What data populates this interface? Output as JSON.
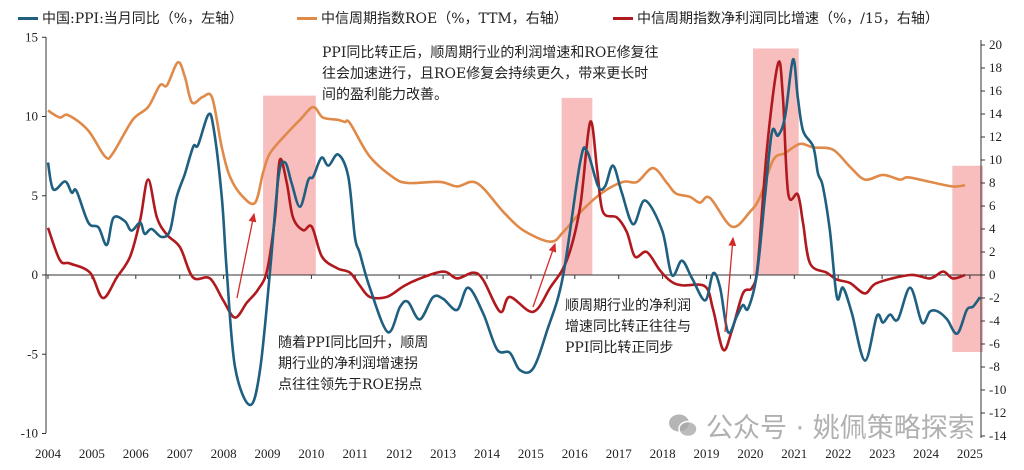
{
  "chart_data": {
    "type": "line",
    "legend_placement": "top",
    "grid": false,
    "x_ticks": [
      "2004",
      "2005",
      "2006",
      "2007",
      "2008",
      "2009",
      "2010",
      "2011",
      "2012",
      "2013",
      "2014",
      "2015",
      "2016",
      "2017",
      "2018",
      "2019",
      "2020",
      "2021",
      "2022",
      "2023",
      "2024",
      "2025"
    ],
    "y_left": {
      "range": [
        -10,
        15
      ],
      "ticks": [
        "-10",
        "-5",
        "0",
        "5",
        "10",
        "15"
      ]
    },
    "y_right": {
      "range": [
        -14,
        20
      ],
      "ticks": [
        "-14",
        "-12",
        "-10",
        "-8",
        "-6",
        "-4",
        "-2",
        "0",
        "2",
        "4",
        "6",
        "8",
        "10",
        "12",
        "14",
        "16",
        "18",
        "20"
      ]
    },
    "series": [
      {
        "name": "中国:PPI:当月同比（%，左轴）",
        "axis": "left",
        "color": "#1f5f80",
        "x": [
          2004.0,
          2004.12,
          2004.39,
          2004.54,
          2004.65,
          2004.92,
          2005.15,
          2005.34,
          2005.49,
          2005.75,
          2005.9,
          2006.1,
          2006.2,
          2006.36,
          2006.59,
          2006.78,
          2006.93,
          2007.12,
          2007.31,
          2007.42,
          2007.65,
          2007.77,
          2007.96,
          2008.07,
          2008.26,
          2008.6,
          2008.83,
          2009.06,
          2009.25,
          2009.4,
          2009.55,
          2009.74,
          2009.93,
          2010.04,
          2010.23,
          2010.39,
          2010.61,
          2010.84,
          2010.99,
          2011.1,
          2011.33,
          2011.74,
          2012.02,
          2012.2,
          2012.47,
          2012.77,
          2013.0,
          2013.32,
          2013.57,
          2013.91,
          2014.23,
          2014.52,
          2014.75,
          2015.05,
          2015.37,
          2015.73,
          2016.12,
          2016.28,
          2016.53,
          2016.69,
          2016.87,
          2017.07,
          2017.33,
          2017.6,
          2017.99,
          2018.21,
          2018.44,
          2018.67,
          2018.97,
          2019.15,
          2019.31,
          2019.49,
          2019.69,
          2019.83,
          2019.95,
          2020.15,
          2020.33,
          2020.49,
          2020.63,
          2020.79,
          2020.97,
          2021.08,
          2021.2,
          2021.43,
          2021.54,
          2021.65,
          2021.81,
          2021.97,
          2022.11,
          2022.31,
          2022.61,
          2022.88,
          2023.02,
          2023.18,
          2023.36,
          2023.64,
          2023.91,
          2024.09,
          2024.27,
          2024.48,
          2024.71,
          2024.93,
          2025.07,
          2025.23
        ],
        "values": [
          7.1,
          5.4,
          5.9,
          5.2,
          5.3,
          3.3,
          3.0,
          1.9,
          3.6,
          3.4,
          2.8,
          3.3,
          2.6,
          2.9,
          2.4,
          2.8,
          4.9,
          6.4,
          8.1,
          8.2,
          10.1,
          9.3,
          4.9,
          0.3,
          -5.8,
          -8.2,
          -6.0,
          0.3,
          6.2,
          7.1,
          5.8,
          4.3,
          6.0,
          6.2,
          7.4,
          6.9,
          7.6,
          6.2,
          2.4,
          1.4,
          -0.8,
          -3.6,
          -2.0,
          -1.7,
          -2.8,
          -1.4,
          -1.5,
          -2.2,
          -0.8,
          -2.4,
          -4.7,
          -4.9,
          -6.0,
          -5.9,
          -3.5,
          -0.1,
          7.1,
          7.8,
          5.6,
          5.6,
          6.9,
          5.2,
          3.2,
          4.7,
          2.8,
          0.0,
          0.9,
          -0.2,
          -1.6,
          0.1,
          -0.8,
          -3.6,
          -2.6,
          -1.9,
          -2.1,
          0.1,
          4.9,
          9.0,
          8.8,
          10.0,
          13.6,
          11.2,
          9.1,
          8.1,
          6.4,
          5.6,
          2.8,
          -1.4,
          -0.8,
          -2.4,
          -5.4,
          -2.6,
          -3.0,
          -2.5,
          -2.8,
          -0.8,
          -3.0,
          -2.3,
          -2.3,
          -2.8,
          -3.7,
          -2.2,
          -2.0,
          -1.4
        ]
      },
      {
        "name": "中信周期指数ROE（%，TTM，右轴）",
        "axis": "right",
        "color": "#e08a4a",
        "x": [
          2004.0,
          2004.27,
          2004.46,
          2004.91,
          2005.3,
          2005.48,
          2005.93,
          2006.28,
          2006.55,
          2006.71,
          2006.96,
          2007.12,
          2007.28,
          2007.53,
          2007.74,
          2007.96,
          2008.15,
          2008.44,
          2008.72,
          2008.9,
          2009.06,
          2009.44,
          2009.74,
          2010.04,
          2010.26,
          2010.6,
          2010.76,
          2010.88,
          2011.33,
          2011.86,
          2012.2,
          2012.93,
          2013.32,
          2013.77,
          2014.37,
          2014.82,
          2015.44,
          2015.73,
          2016.19,
          2016.64,
          2017.1,
          2017.42,
          2017.78,
          2018.1,
          2018.3,
          2018.62,
          2018.85,
          2019.08,
          2019.58,
          2019.99,
          2020.22,
          2020.52,
          2020.79,
          2021.13,
          2021.43,
          2021.88,
          2022.27,
          2022.61,
          2023.02,
          2023.41,
          2023.59,
          2024.09,
          2024.61,
          2024.89
        ],
        "values": [
          14.3,
          13.7,
          13.9,
          12.6,
          10.3,
          10.6,
          13.5,
          14.6,
          16.5,
          16.5,
          18.5,
          17.2,
          15.0,
          15.5,
          15.4,
          11.1,
          8.5,
          6.8,
          6.3,
          8.9,
          10.6,
          12.3,
          13.5,
          14.6,
          13.7,
          13.5,
          13.3,
          13.2,
          10.3,
          8.5,
          8.0,
          8.1,
          7.7,
          8.0,
          5.5,
          3.9,
          2.9,
          3.7,
          5.7,
          7.2,
          8.1,
          8.1,
          9.3,
          8.0,
          7.1,
          6.8,
          6.3,
          6.7,
          4.2,
          5.5,
          6.8,
          10.0,
          10.6,
          11.4,
          11.1,
          10.9,
          9.4,
          8.3,
          8.7,
          8.3,
          8.5,
          8.1,
          7.7,
          7.8
        ]
      },
      {
        "name": "中信周期指数净利润同比增速（%，/15，右轴）",
        "axis": "right",
        "color": "#b01a1f",
        "x": [
          2004.0,
          2004.27,
          2004.5,
          2004.96,
          2005.25,
          2005.57,
          2005.87,
          2006.1,
          2006.28,
          2006.48,
          2006.71,
          2007.01,
          2007.3,
          2007.69,
          2007.99,
          2008.26,
          2008.53,
          2008.78,
          2008.99,
          2009.17,
          2009.28,
          2009.44,
          2009.58,
          2009.81,
          2010.01,
          2010.24,
          2010.58,
          2010.88,
          2011.1,
          2011.33,
          2011.72,
          2012.09,
          2012.41,
          2013.0,
          2013.32,
          2013.68,
          2013.91,
          2014.3,
          2014.52,
          2015.05,
          2015.44,
          2015.82,
          2016.12,
          2016.35,
          2016.51,
          2016.64,
          2016.96,
          2017.19,
          2017.37,
          2017.64,
          2017.94,
          2018.21,
          2018.46,
          2018.97,
          2019.15,
          2019.38,
          2019.58,
          2019.83,
          2020.04,
          2020.17,
          2020.38,
          2020.63,
          2020.74,
          2020.86,
          2021.08,
          2021.2,
          2021.36,
          2021.74,
          2021.97,
          2022.27,
          2022.61,
          2022.88,
          2023.64,
          2024.09,
          2024.39,
          2024.61,
          2024.89
        ],
        "values": [
          4.1,
          1.3,
          1.0,
          0.2,
          -2.0,
          -0.2,
          1.6,
          4.8,
          8.3,
          5.0,
          3.5,
          2.4,
          -0.2,
          -0.3,
          -2.2,
          -3.7,
          -2.4,
          -1.3,
          0.4,
          5.0,
          10.0,
          8.0,
          5.0,
          3.9,
          4.2,
          1.6,
          0.6,
          0.2,
          -0.9,
          -1.9,
          -1.9,
          -1.0,
          -0.4,
          0.3,
          -0.3,
          0.2,
          -0.4,
          -3.2,
          -1.9,
          -3.2,
          -1.1,
          1.3,
          5.9,
          13.3,
          9.1,
          5.5,
          5.0,
          3.7,
          1.6,
          2.0,
          0.4,
          -0.6,
          -0.9,
          -1.0,
          -3.0,
          -6.5,
          -4.8,
          -1.6,
          -1.1,
          1.0,
          11.1,
          18.4,
          15.5,
          7.1,
          7.0,
          4.5,
          1.0,
          0.2,
          -0.4,
          -0.7,
          -1.6,
          -0.7,
          0.0,
          -0.3,
          0.3,
          -0.3,
          0.0
        ]
      }
    ],
    "highlight_periods": [
      {
        "x": [
          2008.9,
          2010.1
        ],
        "y_right": [
          0,
          15.6
        ]
      },
      {
        "x": [
          2015.7,
          2016.4
        ],
        "y_right": [
          0,
          15.4
        ]
      },
      {
        "x": [
          2020.06,
          2021.1
        ],
        "y_right": [
          0,
          19.7
        ]
      },
      {
        "x": [
          2024.6,
          2025.3
        ],
        "y_right": [
          -6.7,
          9.5
        ]
      }
    ],
    "highlight_color": "#f7b3b3",
    "annotations": [
      [
        "PPI同比转正后，顺周期行业的利润增速和ROE修复往",
        "往会加速进行，且ROE修复会持续更久，带来更长时",
        "间的盈利能力改善。"
      ],
      [
        "随着PPI同比回升，顺周",
        "期行业的净利润增速拐",
        "点往往领先于ROE拐点"
      ],
      [
        "顺周期行业的净利润",
        "增速同比转正往往与",
        "PPI同比转正同步"
      ]
    ],
    "arrow_color": "#d42a2a"
  },
  "watermark": "公众号 · 姚佩策略探索"
}
